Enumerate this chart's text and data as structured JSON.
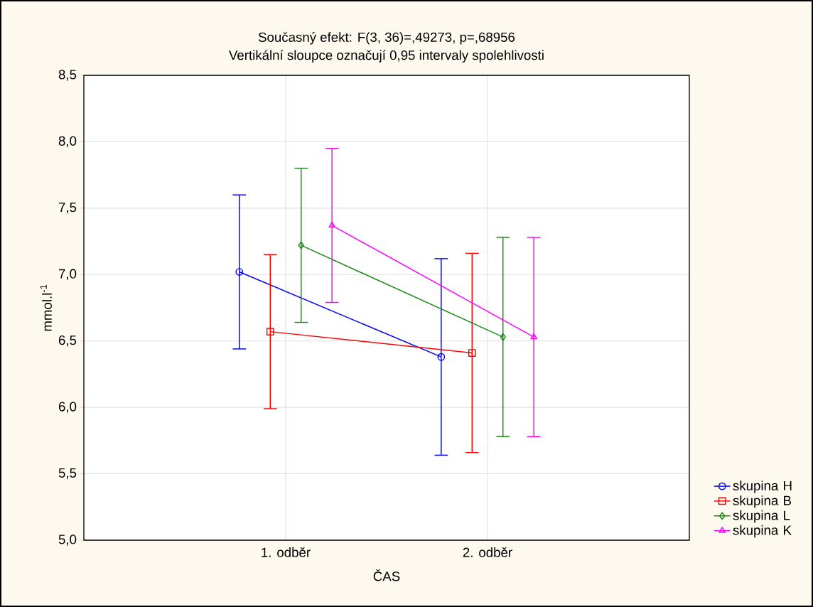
{
  "chart_data": {
    "type": "line",
    "title": "Současný efekt: F(3, 36)=,49273, p=,68956",
    "subtitle": "Vertikální sloupce označují 0,95 intervaly spolehlivosti",
    "xlabel": "ČAS",
    "ylabel": "mmol.l$^{-1}$",
    "categories": [
      "1. odběr",
      "2. odběr"
    ],
    "ylim": [
      5.0,
      8.5
    ],
    "yticks": [
      {
        "value": 5.0,
        "label": "5,0"
      },
      {
        "value": 5.5,
        "label": "5,5"
      },
      {
        "value": 6.0,
        "label": "6,0"
      },
      {
        "value": 6.5,
        "label": "6,5"
      },
      {
        "value": 7.0,
        "label": "7,0"
      },
      {
        "value": 7.5,
        "label": "7,5"
      },
      {
        "value": 8.0,
        "label": "8,0"
      },
      {
        "value": 8.5,
        "label": "8,5"
      }
    ],
    "grid": true,
    "legend": "bottom right",
    "line_style": "solid",
    "series": [
      {
        "name": "skupina H",
        "color": "#0000ff",
        "marker": "circle",
        "values": [
          7.02,
          6.38
        ],
        "errors": [
          0.58,
          0.74
        ]
      },
      {
        "name": "skupina B",
        "color": "#ff0000",
        "marker": "square",
        "values": [
          6.57,
          6.41
        ],
        "errors": [
          0.58,
          0.75
        ]
      },
      {
        "name": "skupina L",
        "color": "#1a8a1a",
        "marker": "diamond",
        "values": [
          7.22,
          6.53
        ],
        "errors": [
          0.58,
          0.75
        ]
      },
      {
        "name": "skupina K",
        "color": "#ff00ff",
        "marker": "triangle",
        "values": [
          7.37,
          6.53
        ],
        "errors": [
          0.58,
          0.75
        ]
      }
    ]
  }
}
